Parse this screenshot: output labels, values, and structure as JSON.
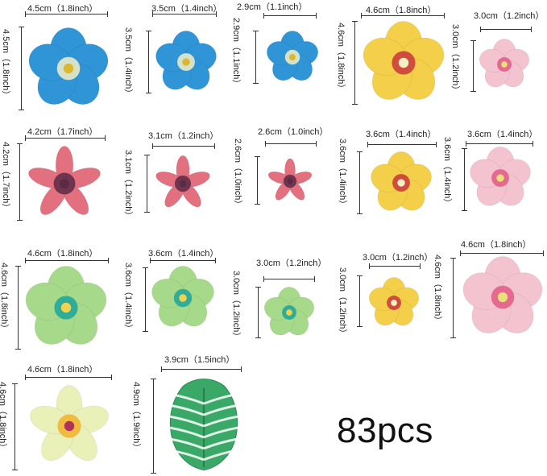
{
  "items": [
    {
      "id": "blue-large",
      "width_label": "4.5cm（1.8inch）",
      "height_label": "4.5cm（1.8inch）",
      "petal": "#2f95d6",
      "center": "#f4efc5",
      "eye": "#d9b82d",
      "shape": "flower"
    },
    {
      "id": "blue-medium",
      "width_label": "3.5cm（1.4inch）",
      "height_label": "3.5cm（1.4inch）",
      "petal": "#2f95d6",
      "center": "#f4efc5",
      "eye": "#d9b82d",
      "shape": "flower"
    },
    {
      "id": "blue-small",
      "width_label": "2.9cm（1.1inch）",
      "height_label": "2.9cm（1.1inch）",
      "petal": "#2f95d6",
      "center": "#f4efc5",
      "eye": "#d9b82d",
      "shape": "flower"
    },
    {
      "id": "yellow-hibiscus-large",
      "width_label": "4.6cm（1.8inch）",
      "height_label": "4.6cm（1.8inch）",
      "petal": "#f3cf4a",
      "center": "#c9353b",
      "eye": "#f4efc5",
      "shape": "flower"
    },
    {
      "id": "pink-small-1",
      "width_label": "3.0cm（1.2inch）",
      "height_label": "3.0cm（1.2inch）",
      "petal": "#f3c3d0",
      "center": "#e05a85",
      "eye": "#e8e27a",
      "shape": "flower"
    },
    {
      "id": "coral-star-large",
      "width_label": "4.2cm（1.7inch）",
      "height_label": "4.2cm（1.7inch）",
      "petal": "#e2707e",
      "center": "#5b2a45",
      "eye": "#5b2a45",
      "shape": "star"
    },
    {
      "id": "coral-star-medium",
      "width_label": "3.1cm（1.2inch）",
      "height_label": "3.1cm（1.2inch）",
      "petal": "#e2707e",
      "center": "#5b2a45",
      "eye": "#5b2a45",
      "shape": "star"
    },
    {
      "id": "coral-star-small",
      "width_label": "2.6cm（1.0inch）",
      "height_label": "2.6cm（1.0inch）",
      "petal": "#e2707e",
      "center": "#5b2a45",
      "eye": "#5b2a45",
      "shape": "star"
    },
    {
      "id": "yellow-hibiscus-medium",
      "width_label": "3.6cm（1.4inch）",
      "height_label": "3.6cm（1.4inch）",
      "petal": "#f3cf4a",
      "center": "#c9353b",
      "eye": "#f4efc5",
      "shape": "flower"
    },
    {
      "id": "pink-medium",
      "width_label": "3.6cm（1.4inch）",
      "height_label": "3.6cm（1.4inch）",
      "petal": "#f3c3d0",
      "center": "#e05a85",
      "eye": "#e8e27a",
      "shape": "flower"
    },
    {
      "id": "teal-large",
      "width_label": "4.6cm（1.8inch）",
      "height_label": "4.6cm（1.8inch）",
      "petal": "#a7d98a",
      "center": "#1aa59a",
      "eye": "#f1d24a",
      "shape": "flower"
    },
    {
      "id": "teal-medium",
      "width_label": "3.6cm（1.4inch）",
      "height_label": "3.6cm（1.4inch）",
      "petal": "#a7d98a",
      "center": "#1aa59a",
      "eye": "#f1d24a",
      "shape": "flower"
    },
    {
      "id": "teal-small",
      "width_label": "3.0cm（1.2inch）",
      "height_label": "3.0cm（1.2inch）",
      "petal": "#a7d98a",
      "center": "#1aa59a",
      "eye": "#f1d24a",
      "shape": "flower"
    },
    {
      "id": "yellow-hibiscus-small",
      "width_label": "3.0cm（1.2inch）",
      "height_label": "3.0cm（1.2inch）",
      "petal": "#f3cf4a",
      "center": "#c9353b",
      "eye": "#f4efc5",
      "shape": "flower"
    },
    {
      "id": "pink-large",
      "width_label": "4.6cm（1.8inch）",
      "height_label": "4.6cm（1.8inch）",
      "petal": "#f3c3d0",
      "center": "#e05a85",
      "eye": "#e8e27a",
      "shape": "flower"
    },
    {
      "id": "plumeria",
      "width_label": "4.6cm（1.8inch）",
      "height_label": "4.6cm（1.8inch）",
      "petal": "#e9f1b8",
      "center": "#f2b02a",
      "eye": "#b0325a",
      "shape": "plumeria"
    },
    {
      "id": "monstera-leaf",
      "width_label": "3.9cm（1.5inch）",
      "height_label": "4.9cm（1.9inch）",
      "petal": "#3aa866",
      "center": "#2b7d4b",
      "eye": "#2b7d4b",
      "shape": "leaf"
    }
  ],
  "total_count": "83pcs"
}
